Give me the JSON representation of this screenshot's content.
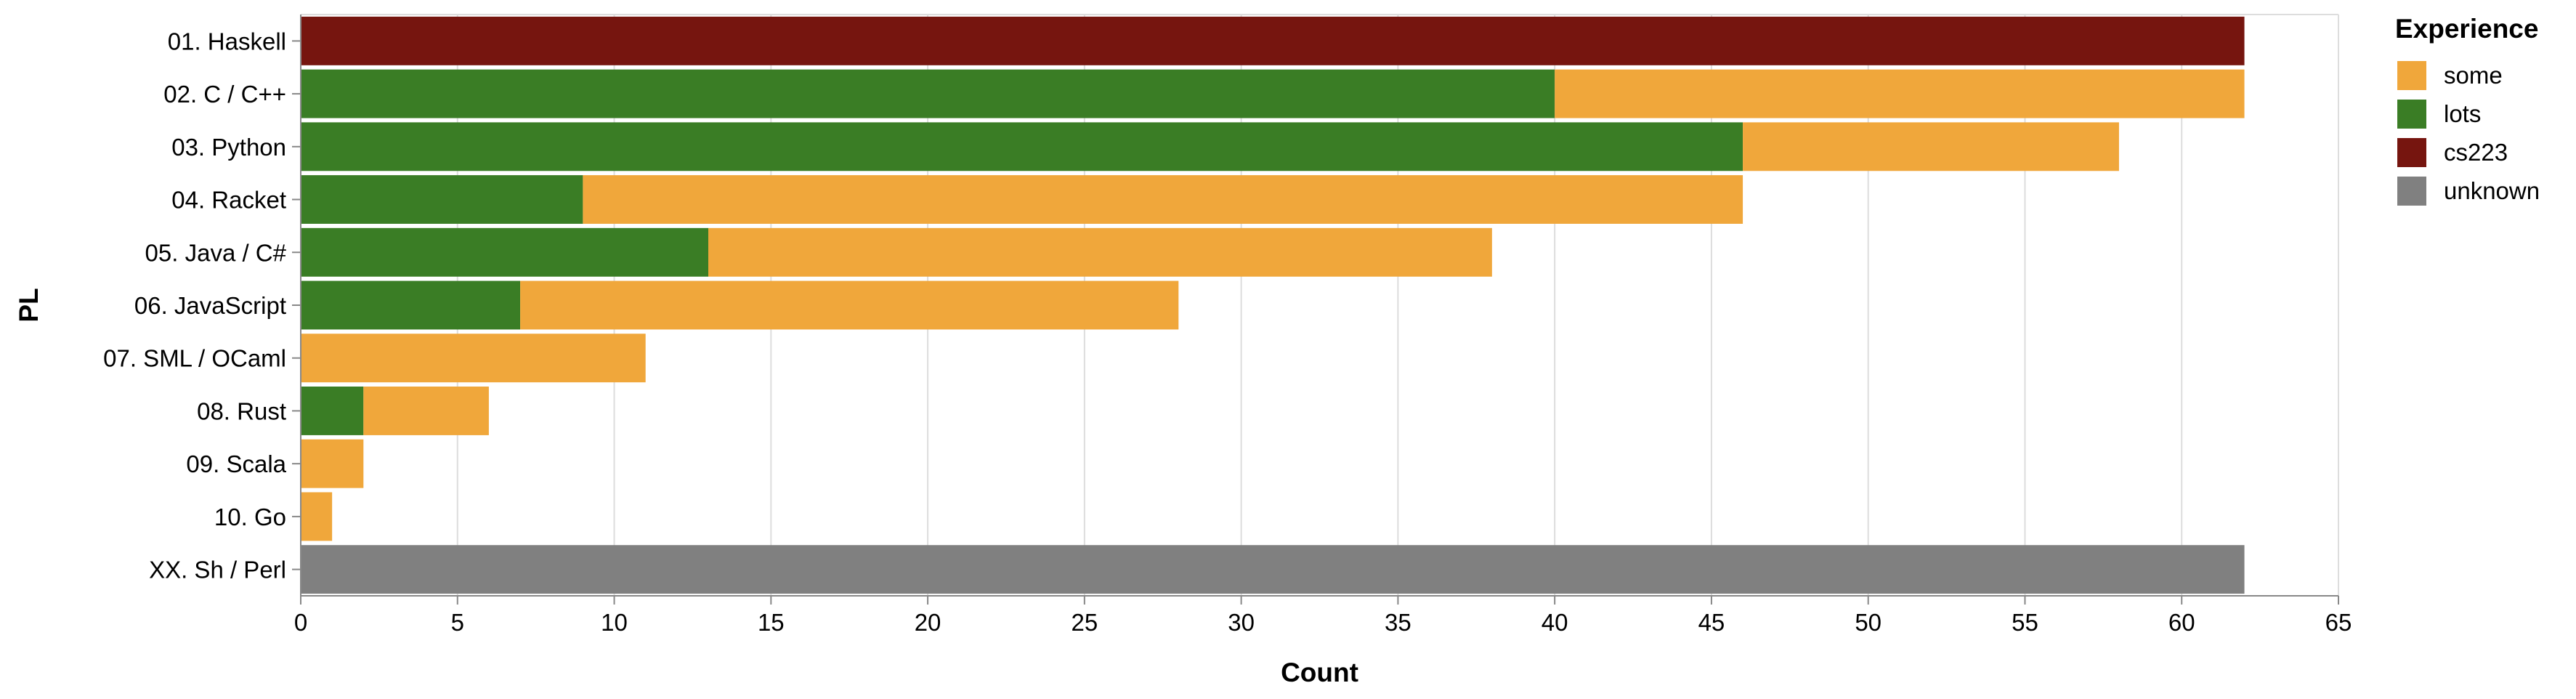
{
  "chart_data": {
    "type": "bar",
    "orientation": "horizontal",
    "stacked": true,
    "xlabel": "Count",
    "ylabel": "PL",
    "xlim": [
      0,
      65
    ],
    "x_ticks": [
      0,
      5,
      10,
      15,
      20,
      25,
      30,
      35,
      40,
      45,
      50,
      55,
      60,
      65
    ],
    "grid": true,
    "categories": [
      "01. Haskell",
      "02. C / C++",
      "03. Python",
      "04. Racket",
      "05. Java / C#",
      "06. JavaScript",
      "07. SML / OCaml",
      "08. Rust",
      "09. Scala",
      "10. Go",
      "XX. Sh / Perl"
    ],
    "series": [
      {
        "name": "lots",
        "color": "#3a7d25",
        "values": [
          0,
          40,
          46,
          9,
          13,
          7,
          0,
          2,
          0,
          0,
          0
        ]
      },
      {
        "name": "some",
        "color": "#f0a73b",
        "values": [
          0,
          22,
          12,
          37,
          25,
          21,
          11,
          4,
          2,
          1,
          0
        ]
      },
      {
        "name": "cs223",
        "color": "#76150f",
        "values": [
          62,
          0,
          0,
          0,
          0,
          0,
          0,
          0,
          0,
          0,
          0
        ]
      },
      {
        "name": "unknown",
        "color": "#808080",
        "values": [
          0,
          0,
          0,
          0,
          0,
          0,
          0,
          0,
          0,
          0,
          62
        ]
      }
    ],
    "legend": {
      "title": "Experience",
      "position": "right",
      "items": [
        {
          "name": "some",
          "color": "#f0a73b"
        },
        {
          "name": "lots",
          "color": "#3a7d25"
        },
        {
          "name": "cs223",
          "color": "#76150f"
        },
        {
          "name": "unknown",
          "color": "#808080"
        }
      ]
    }
  }
}
